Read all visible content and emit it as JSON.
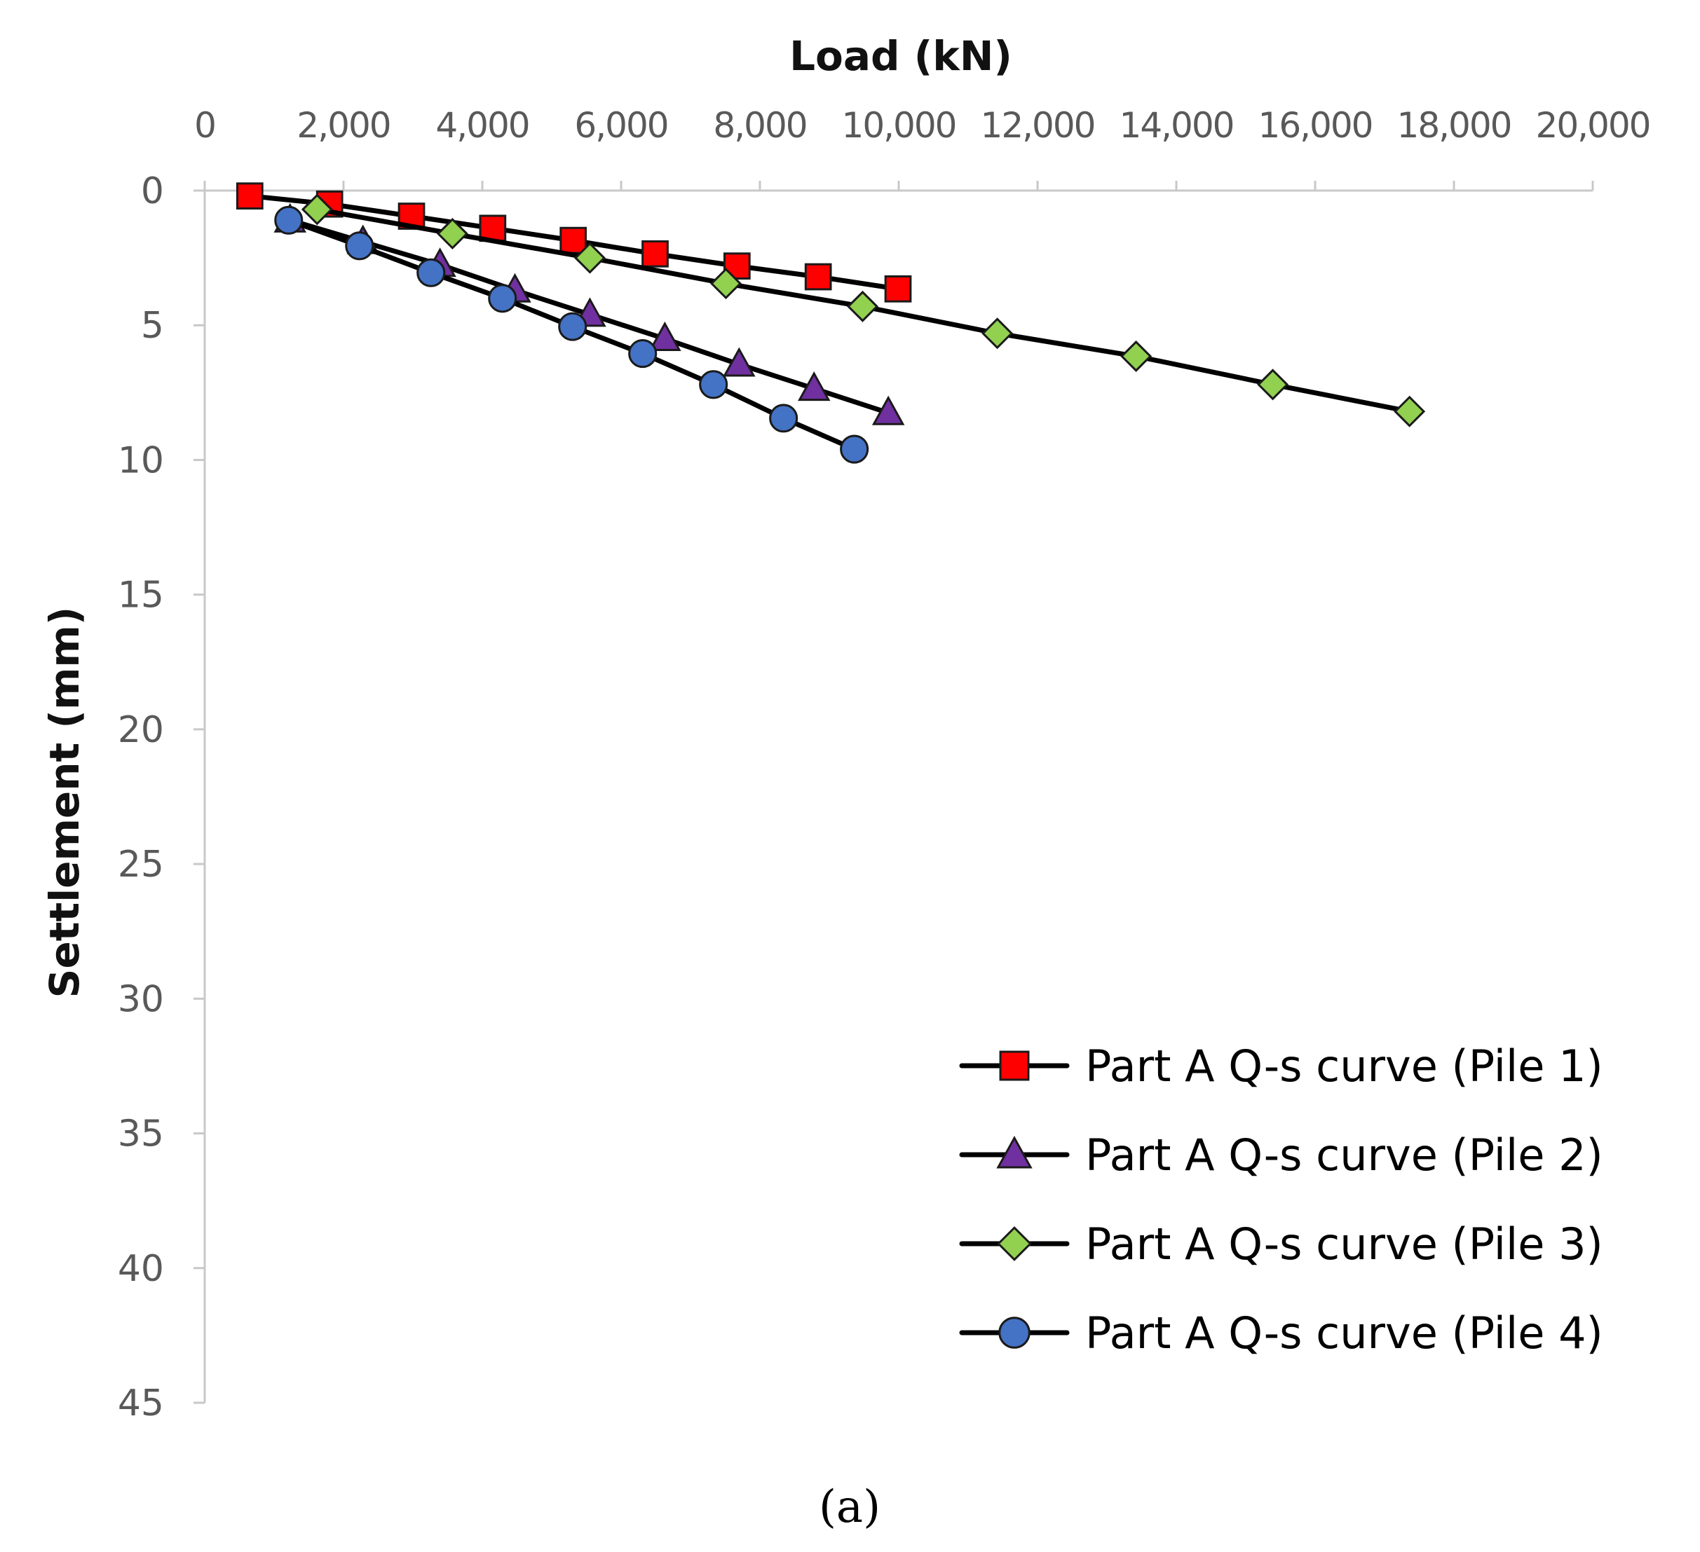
{
  "chart_data": {
    "type": "line",
    "title": "",
    "xlabel": "Load (kN)",
    "ylabel": "Settlement (mm)",
    "x_axis_position": "top",
    "y_axis_inverted": true,
    "xlim": [
      0,
      20000
    ],
    "ylim": [
      0,
      45
    ],
    "x_ticks": [
      0,
      2000,
      4000,
      6000,
      8000,
      10000,
      12000,
      14000,
      16000,
      18000,
      20000
    ],
    "x_tick_labels": [
      "0",
      "2,000",
      "4,000",
      "6,000",
      "8,000",
      "10,000",
      "12,000",
      "14,000",
      "16,000",
      "18,000",
      "20,000"
    ],
    "y_ticks": [
      0,
      5,
      10,
      15,
      20,
      25,
      30,
      35,
      40,
      45
    ],
    "y_tick_labels": [
      "0",
      "5",
      "10",
      "15",
      "20",
      "25",
      "30",
      "35",
      "40",
      "45"
    ],
    "grid": false,
    "legend_position": "bottom-right",
    "caption": "(a)",
    "series": [
      {
        "name": "Part A Q-s curve (Pile 1)",
        "marker": "square",
        "color": "#ff0000",
        "x": [
          650,
          1800,
          2980,
          4150,
          5310,
          6490,
          7670,
          8840,
          9990
        ],
        "y": [
          0.2,
          0.5,
          0.95,
          1.4,
          1.85,
          2.35,
          2.8,
          3.2,
          3.65
        ]
      },
      {
        "name": "Part A Q-s curve (Pile 2)",
        "marker": "triangle",
        "color": "#7030a0",
        "x": [
          1230,
          2280,
          3390,
          4470,
          5550,
          6630,
          7700,
          8780,
          9850
        ],
        "y": [
          1.1,
          1.9,
          2.75,
          3.7,
          4.6,
          5.5,
          6.45,
          7.35,
          8.25
        ]
      },
      {
        "name": "Part A Q-s curve (Pile 3)",
        "marker": "diamond",
        "color": "#92d050",
        "x": [
          1620,
          3570,
          5550,
          7510,
          9480,
          11420,
          13420,
          15390,
          17360
        ],
        "y": [
          0.7,
          1.6,
          2.5,
          3.45,
          4.3,
          5.3,
          6.15,
          7.2,
          8.2
        ]
      },
      {
        "name": "Part A Q-s curve (Pile 4)",
        "marker": "circle",
        "color": "#4472c4",
        "x": [
          1210,
          2230,
          3260,
          4290,
          5300,
          6310,
          7330,
          8340,
          9360
        ],
        "y": [
          1.1,
          2.05,
          3.05,
          4.0,
          5.05,
          6.05,
          7.2,
          8.45,
          9.6
        ]
      }
    ]
  }
}
